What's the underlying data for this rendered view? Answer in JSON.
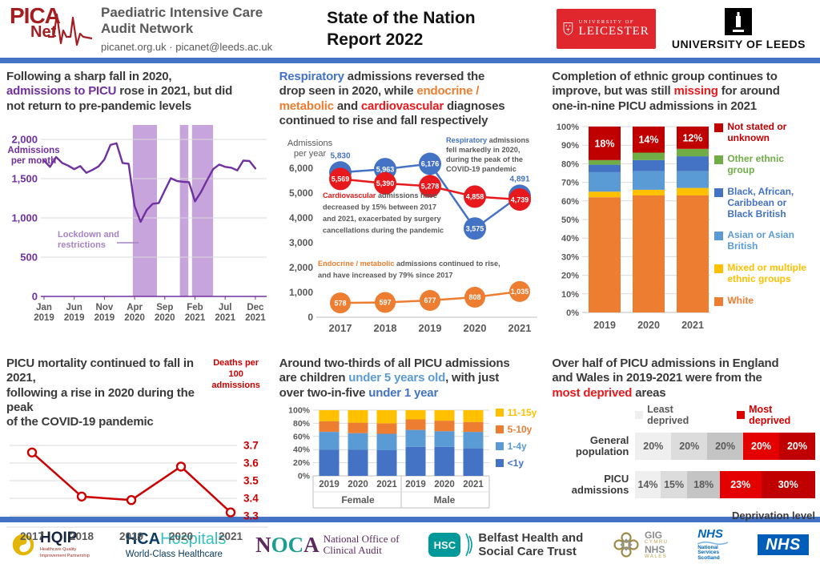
{
  "header": {
    "logo_line1": "PICA",
    "logo_line2": "Net",
    "org_line1": "Paediatric Intensive Care",
    "org_line2": "Audit Network",
    "contact": "picanet.org.uk · picanet@leeds.ac.uk",
    "title_line1": "State of the Nation",
    "title_line2": "Report 2022",
    "leicester_small": "UNIVERSITY OF",
    "leicester_big": "LEICESTER",
    "leeds": "UNIVERSITY OF LEEDS"
  },
  "colors": {
    "accent_blue": "#4472C4",
    "purple": "#7030A0",
    "bright_red": "#E8191C",
    "dark_red": "#C00000",
    "orange": "#ED7D31",
    "yellow": "#FFC000",
    "light_blue": "#5B9BD5",
    "green": "#70AD47",
    "gray_text": "#595959"
  },
  "chart_data": [
    {
      "id": "monthly-admissions",
      "type": "line",
      "title_segments": [
        {
          "t": "Following a sharp fall in 2020,\n"
        },
        {
          "t": "admissions to PICU",
          "c": "#7030A0"
        },
        {
          "t": " rose in 2021, but did\nnot return to pre-pandemic levels"
        }
      ],
      "ylabel_lines": [
        "Admissions",
        "per month"
      ],
      "ylim": [
        0,
        2000
      ],
      "yticks": [
        0,
        500,
        1000,
        1500,
        2000
      ],
      "line_color": "#7030A0",
      "months": [
        "Jan 2019",
        "Feb 2019",
        "Mar 2019",
        "Apr 2019",
        "May 2019",
        "Jun 2019",
        "Jul 2019",
        "Aug 2019",
        "Sep 2019",
        "Oct 2019",
        "Nov 2019",
        "Dec 2019",
        "Jan 2020",
        "Feb 2020",
        "Mar 2020",
        "Apr 2020",
        "May 2020",
        "Jun 2020",
        "Jul 2020",
        "Aug 2020",
        "Sep 2020",
        "Oct 2020",
        "Nov 2020",
        "Dec 2020",
        "Jan 2021",
        "Feb 2021",
        "Mar 2021",
        "Apr 2021",
        "May 2021",
        "Jun 2021",
        "Jul 2021",
        "Aug 2021",
        "Sep 2021",
        "Oct 2021",
        "Nov 2021",
        "Dec 2021"
      ],
      "values": [
        1730,
        1650,
        1775,
        1700,
        1665,
        1620,
        1660,
        1575,
        1610,
        1655,
        1745,
        1930,
        1950,
        1700,
        1690,
        1150,
        950,
        1100,
        1180,
        1190,
        1350,
        1505,
        1470,
        1460,
        1455,
        1210,
        1330,
        1480,
        1620,
        1680,
        1650,
        1640,
        1605,
        1730,
        1725,
        1630
      ],
      "lockdown": {
        "label_lines": [
          "Lockdown and",
          "restrictions"
        ],
        "label_color": "#A583C5",
        "color": "#C7A4DB",
        "ranges": [
          [
            14.7,
            18.7
          ],
          [
            22.5,
            23.9
          ],
          [
            24.5,
            28.0
          ]
        ]
      }
    },
    {
      "id": "diagnoses-per-year",
      "type": "line",
      "title_segments": [
        {
          "t": "Respiratory",
          "c": "#4472C4"
        },
        {
          "t": " admissions reversed the\ndrop seen in 2020, while "
        },
        {
          "t": "endocrine /\nmetabolic",
          "c": "#ED7D31"
        },
        {
          "t": " and "
        },
        {
          "t": "cardiovascular",
          "c": "#E8191C"
        },
        {
          "t": " diagnoses\ncontinued to rise and fall respectively"
        }
      ],
      "ylabel_lines": [
        "Admissions",
        "per year"
      ],
      "x": [
        "2017",
        "2018",
        "2019",
        "2020",
        "2021"
      ],
      "ylim": [
        0,
        6500
      ],
      "yticks": [
        0,
        1000,
        2000,
        3000,
        4000,
        5000,
        6000
      ],
      "series": [
        {
          "name": "Respiratory",
          "color": "#4472C4",
          "values": [
            5830,
            5963,
            6176,
            3575,
            4891
          ],
          "label_outside": [
            0,
            4
          ],
          "r": 14
        },
        {
          "name": "Cardiovascular",
          "color": "#E8191C",
          "values": [
            5569,
            5390,
            5278,
            4858,
            4739
          ],
          "label_outside": [],
          "r": 14
        },
        {
          "name": "Endocrine / metabolic",
          "color": "#ED7D31",
          "values": [
            578,
            597,
            677,
            808,
            1035
          ],
          "label_outside": [],
          "r": 13
        }
      ],
      "annotations": [
        {
          "lead": "Respiratory",
          "lead_color": "#4472C4",
          "lines": [
            "Respiratory admissions",
            "fell markedly in 2020,",
            "during the peak of the",
            "COVID-19 pandemic"
          ]
        },
        {
          "lead": "Cardiovascular",
          "lead_color": "#E8191C",
          "lines": [
            "Cardiovascular admissions have",
            "decreased by 15% between 2017",
            "and 2021, exacerbated by surgery",
            "cancellations during the pandemic"
          ]
        },
        {
          "lead": "Endocrine / metabolic",
          "lead_color": "#ED7D31",
          "lines": [
            "Endocrine / metabolic admissions continued to rise,",
            "and have increased by 79% since 2017"
          ]
        }
      ]
    },
    {
      "id": "ethnic-group-completion",
      "type": "stacked-bar",
      "title_segments": [
        {
          "t": "Completion of ethnic group continues to\nimprove, but was still "
        },
        {
          "t": "missing",
          "c": "#E8191C"
        },
        {
          "t": " for around\none-in-nine PICU admissions in 2021"
        }
      ],
      "categories": [
        "2019",
        "2020",
        "2021"
      ],
      "ylim": [
        0,
        100
      ],
      "ytick_step": 10,
      "series": [
        {
          "name": "White",
          "color": "#ED7D31",
          "values": [
            62,
            63,
            63
          ]
        },
        {
          "name": "Mixed or multiple ethnic groups",
          "color": "#FFC000",
          "values": [
            3,
            3,
            4
          ]
        },
        {
          "name": "Asian or Asian British",
          "color": "#5B9BD5",
          "values": [
            10.5,
            10,
            9
          ]
        },
        {
          "name": "Black, African, Caribbean or Black British",
          "color": "#4472C4",
          "values": [
            4,
            6,
            8
          ]
        },
        {
          "name": "Other ethnic group",
          "color": "#70AD47",
          "values": [
            2.5,
            4,
            4
          ]
        },
        {
          "name": "Not stated or unknown",
          "color": "#C00000",
          "values": [
            18,
            14,
            12
          ],
          "labels": [
            "18%",
            "14%",
            "12%"
          ]
        }
      ],
      "legend": [
        {
          "color": "#C00000",
          "lines": [
            "Not stated or",
            "unknown"
          ]
        },
        {
          "color": "#70AD47",
          "lines": [
            "Other ethnic",
            "group"
          ]
        },
        {
          "color": "#4472C4",
          "lines": [
            "Black, African,",
            "Caribbean or",
            "Black British"
          ]
        },
        {
          "color": "#5B9BD5",
          "lines": [
            "Asian or Asian",
            "British"
          ]
        },
        {
          "color": "#FFC000",
          "lines": [
            "Mixed or multiple",
            "ethnic groups"
          ]
        },
        {
          "color": "#ED7D31",
          "lines": [
            "White"
          ]
        }
      ]
    },
    {
      "id": "picu-mortality",
      "type": "line",
      "title_segments": [
        {
          "t": "PICU mortality continued to fall in 2021,\nfollowing a rise in 2020 during the peak\nof the COVID-19 pandemic"
        }
      ],
      "ylabel_lines": [
        "Deaths per",
        "100",
        "admissions"
      ],
      "x": [
        "2017",
        "2018",
        "2019",
        "2020",
        "2021"
      ],
      "values": [
        3.66,
        3.41,
        3.39,
        3.58,
        3.32
      ],
      "yticks": [
        3.7,
        3.6,
        3.5,
        3.4,
        3.3
      ],
      "color": "#CC0000"
    },
    {
      "id": "admissions-by-age-sex",
      "type": "stacked-bar",
      "title_segments": [
        {
          "t": "Around two-thirds of all PICU admissions\nare children "
        },
        {
          "t": "under 5 years old",
          "c": "#5B9BD5"
        },
        {
          "t": ", with just\nover two-in-five "
        },
        {
          "t": "under 1 year",
          "c": "#4472C4"
        }
      ],
      "groups": [
        {
          "label": "Female",
          "categories": [
            "2019",
            "2020",
            "2021"
          ]
        },
        {
          "label": "Male",
          "categories": [
            "2019",
            "2020",
            "2021"
          ]
        }
      ],
      "ylim": [
        0,
        100
      ],
      "ytick_step": 20,
      "series": [
        {
          "name": "<1y",
          "color": "#4472C4",
          "values": [
            40,
            40,
            39,
            44,
            44,
            42
          ]
        },
        {
          "name": "1-4y",
          "color": "#5B9BD5",
          "values": [
            27,
            25,
            25,
            26,
            24,
            25
          ]
        },
        {
          "name": "5-10y",
          "color": "#ED7D31",
          "values": [
            16,
            16,
            16,
            16,
            16,
            15
          ]
        },
        {
          "name": "11-15y",
          "color": "#FFC000",
          "values": [
            17,
            19,
            20,
            14,
            16,
            18
          ]
        }
      ],
      "legend": [
        {
          "color": "#FFC000",
          "lines": [
            "11-15y"
          ]
        },
        {
          "color": "#ED7D31",
          "lines": [
            "5-10y"
          ]
        },
        {
          "color": "#5B9BD5",
          "lines": [
            "1-4y"
          ]
        },
        {
          "color": "#4472C4",
          "lines": [
            "<1y"
          ]
        }
      ]
    },
    {
      "id": "deprivation",
      "type": "stacked-bar-horizontal",
      "title_segments": [
        {
          "t": "Over half of PICU admissions in England\nand Wales in 2019-2021 were from the\n"
        },
        {
          "t": "most deprived",
          "c": "#E8191C"
        },
        {
          "t": " areas"
        }
      ],
      "legend": [
        {
          "label": "Least deprived",
          "color": "#EFEFEF",
          "text_color": "#595959"
        },
        {
          "label": "Most deprived",
          "color": "#D90000",
          "text_color": "#D90000"
        }
      ],
      "segment_colors": [
        "#EFEFEF",
        "#DCDCDC",
        "#C4C4C4",
        "#E50000",
        "#C00000"
      ],
      "segment_text_colors": [
        "#595959",
        "#595959",
        "#595959",
        "#FFFFFF",
        "#FFFFFF"
      ],
      "rows": [
        {
          "label": "General population",
          "values": [
            20,
            20,
            20,
            20,
            20
          ],
          "labels": [
            "20%",
            "20%",
            "20%",
            "20%",
            "20%"
          ]
        },
        {
          "label": "PICU admissions",
          "values": [
            14,
            15,
            18,
            23,
            30
          ],
          "labels": [
            "14%",
            "15%",
            "18%",
            "23%",
            "30%"
          ]
        }
      ],
      "caption": "Deprivation level"
    }
  ],
  "footer": {
    "hqip": {
      "name": "HQIP",
      "sub": "Healthcare Quality Improvement Partnership"
    },
    "hca": {
      "bold": "HCA",
      "rest": "Hospitals",
      "sub": "World-Class Healthcare"
    },
    "noca": {
      "n": "N",
      "oc": "OC",
      "a": "A",
      "line1": "National Office of",
      "line2": "Clinical Audit"
    },
    "hsc": {
      "abbr": "HSC",
      "line1": "Belfast Health and",
      "line2": "Social Care Trust"
    },
    "wales": {
      "l1": "GIG",
      "l2": "CYMRU",
      "l3": "NHS",
      "l4": "WALES"
    },
    "scotland": {
      "abbr": "NHS",
      "l1": "National",
      "l2": "Services",
      "l3": "Scotland"
    },
    "nhs": "NHS"
  }
}
